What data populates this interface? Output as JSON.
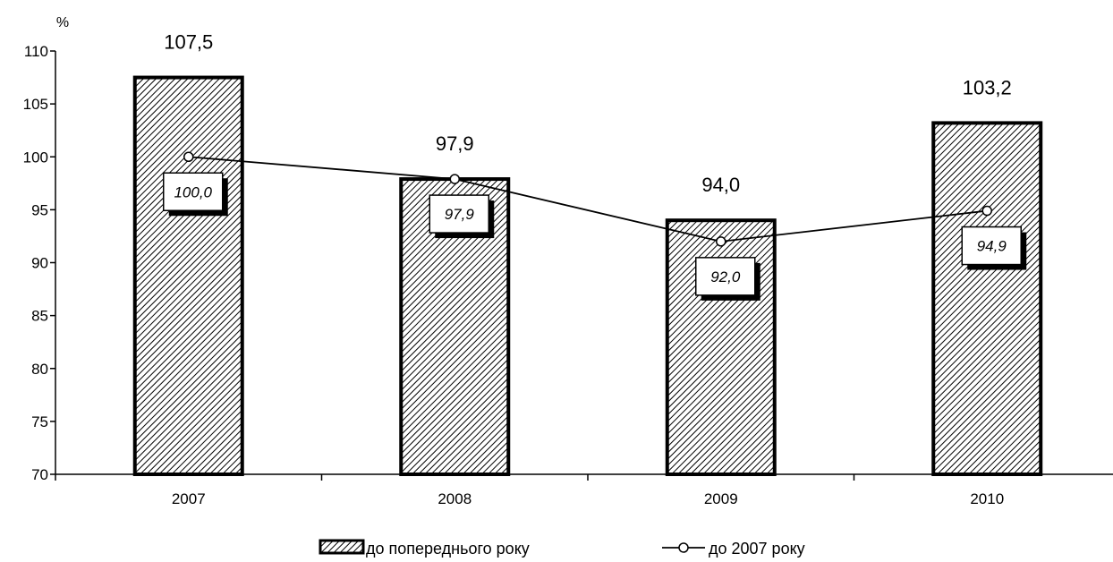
{
  "chart_data": {
    "type": "bar",
    "ylabel": "%",
    "ylim": [
      70,
      110
    ],
    "yticks": [
      70,
      75,
      80,
      85,
      90,
      95,
      100,
      105,
      110
    ],
    "categories": [
      "2007",
      "2008",
      "2009",
      "2010"
    ],
    "series": [
      {
        "name": "до попереднього року",
        "kind": "bar",
        "values": [
          107.5,
          97.9,
          94.0,
          103.2
        ],
        "labels": [
          "107,5",
          "97,9",
          "94,0",
          "103,2"
        ],
        "pattern": "diagonal-hatch"
      },
      {
        "name": "до 2007 року",
        "kind": "line",
        "values": [
          100.0,
          97.9,
          92.0,
          94.9
        ],
        "labels": [
          "100,0",
          "97,9",
          "92,0",
          "94,9"
        ],
        "marker": "open-circle"
      }
    ],
    "grid": false,
    "legend": "bottom"
  }
}
